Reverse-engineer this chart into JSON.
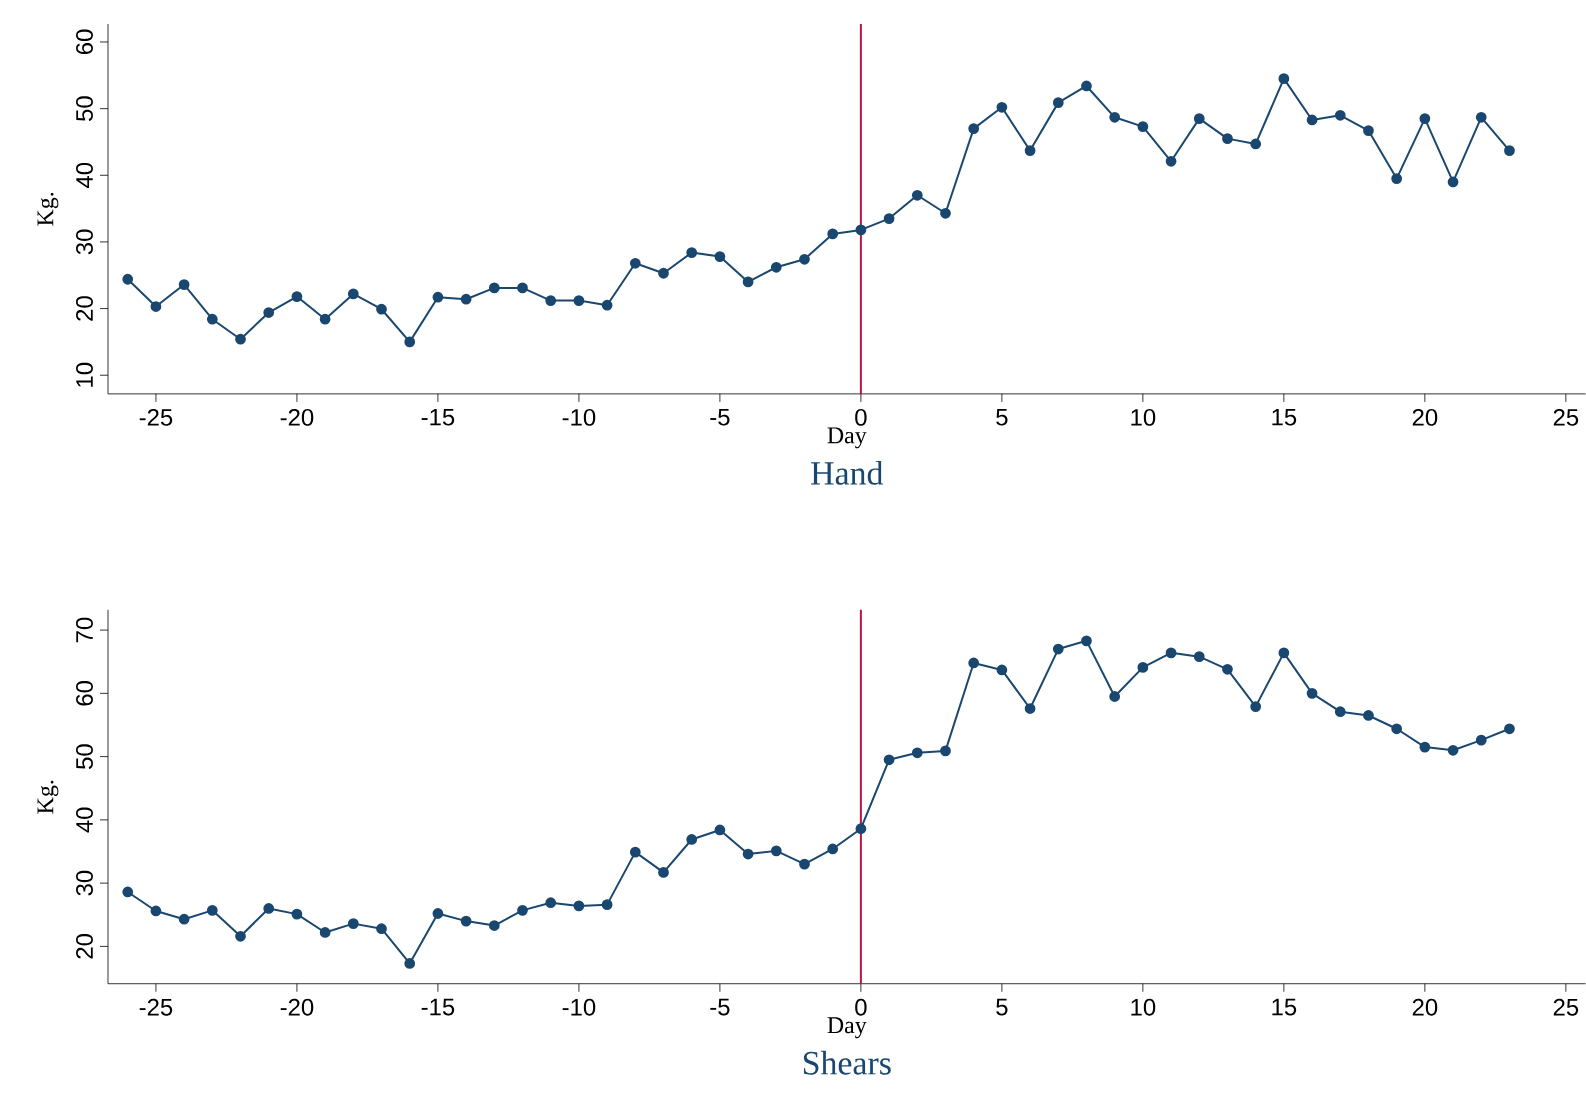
{
  "chart_data": [
    {
      "type": "line",
      "title": "Hand",
      "xlabel": "Day",
      "ylabel": "Kg.",
      "marker": "circle",
      "line_style": "solid",
      "x": [
        -26,
        -25,
        -24,
        -23,
        -22,
        -21,
        -20,
        -19,
        -18,
        -17,
        -16,
        -15,
        -14,
        -13,
        -12,
        -11,
        -10,
        -9,
        -8,
        -7,
        -6,
        -5,
        -4,
        -3,
        -2,
        -1,
        0,
        1,
        2,
        3,
        4,
        5,
        6,
        7,
        8,
        9,
        10,
        11,
        12,
        13,
        14,
        15,
        16,
        17,
        18,
        19,
        20,
        21,
        22,
        23
      ],
      "series": [
        {
          "color": "#1a476f",
          "values": [
            24.4,
            20.3,
            23.6,
            18.4,
            15.4,
            19.4,
            21.8,
            18.4,
            22.2,
            19.9,
            15.0,
            21.7,
            21.4,
            23.1,
            23.1,
            21.2,
            21.2,
            20.5,
            26.8,
            25.3,
            28.4,
            27.8,
            24.0,
            26.2,
            27.4,
            31.2,
            31.8,
            33.5,
            37.0,
            34.3,
            47.0,
            50.2,
            43.7,
            50.9,
            53.4,
            48.7,
            47.3,
            42.1,
            48.5,
            45.5,
            44.7,
            54.5,
            48.3,
            49.0,
            46.7,
            39.5,
            48.5,
            39.0,
            48.7,
            43.7
          ]
        }
      ],
      "xlim": [
        -26.7,
        25.7
      ],
      "ylim": [
        7.2,
        62.7
      ],
      "xticks": [
        -25,
        -20,
        -15,
        -10,
        -5,
        0,
        5,
        10,
        15,
        20,
        25
      ],
      "yticks": [
        10,
        20,
        30,
        40,
        50,
        60
      ],
      "ref_lines": [
        {
          "axis": "x",
          "value": 0,
          "color": "#c0143c"
        }
      ]
    },
    {
      "type": "line",
      "title": "Shears",
      "xlabel": "Day",
      "ylabel": "Kg.",
      "marker": "circle",
      "line_style": "solid",
      "x": [
        -26,
        -25,
        -24,
        -23,
        -22,
        -21,
        -20,
        -19,
        -18,
        -17,
        -16,
        -15,
        -14,
        -13,
        -12,
        -11,
        -10,
        -9,
        -8,
        -7,
        -6,
        -5,
        -4,
        -3,
        -2,
        -1,
        0,
        1,
        2,
        3,
        4,
        5,
        6,
        7,
        8,
        9,
        10,
        11,
        12,
        13,
        14,
        15,
        16,
        17,
        18,
        19,
        20,
        21,
        22,
        23
      ],
      "series": [
        {
          "color": "#1a476f",
          "values": [
            28.6,
            25.6,
            24.3,
            25.7,
            21.6,
            26.0,
            25.1,
            22.2,
            23.6,
            22.8,
            17.3,
            25.2,
            24.0,
            23.3,
            25.7,
            26.9,
            26.4,
            26.6,
            34.9,
            31.7,
            36.9,
            38.4,
            34.6,
            35.1,
            33.0,
            35.4,
            38.6,
            49.5,
            50.6,
            50.9,
            64.8,
            63.7,
            57.6,
            67.0,
            68.3,
            59.5,
            64.1,
            66.4,
            65.8,
            63.8,
            57.9,
            66.4,
            60.0,
            57.1,
            56.5,
            54.4,
            51.5,
            51.0,
            52.6,
            54.4
          ]
        }
      ],
      "xlim": [
        -26.7,
        25.7
      ],
      "ylim": [
        14.1,
        73.2
      ],
      "xticks": [
        -25,
        -20,
        -15,
        -10,
        -5,
        0,
        5,
        10,
        15,
        20,
        25
      ],
      "yticks": [
        20,
        30,
        40,
        50,
        60,
        70
      ],
      "ref_lines": [
        {
          "axis": "x",
          "value": 0,
          "color": "#c0143c"
        }
      ]
    }
  ]
}
